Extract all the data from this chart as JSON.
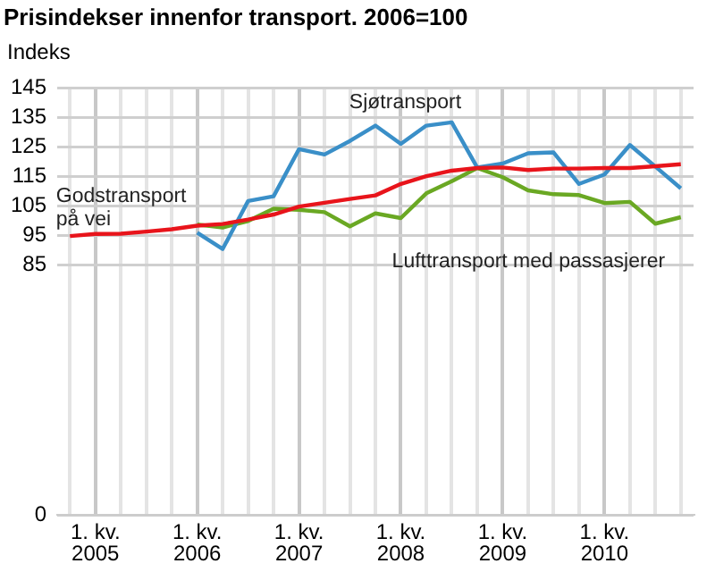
{
  "chart_data": {
    "type": "line",
    "title": "Prisindekser innenfor transport. 2006=100",
    "ylabel": "Indeks",
    "categories": [
      null,
      "1. kv.\n2005",
      null,
      null,
      null,
      "1. kv.\n2006",
      null,
      null,
      null,
      "1. kv.\n2007",
      null,
      null,
      null,
      "1. kv.\n2008",
      null,
      null,
      null,
      "1. kv.\n2009",
      null,
      null,
      null,
      "1. kv.\n2010",
      null,
      null,
      null
    ],
    "series": [
      {
        "name": "Godstransport\npå vei",
        "color": "#e8141b",
        "values": [
          94.7,
          95.4,
          95.5,
          96.2,
          97,
          98.2,
          98.8,
          100.3,
          102,
          104.7,
          106,
          107.3,
          108.5,
          112.4,
          115,
          116.9,
          117.8,
          118,
          117.1,
          117.6,
          117.6,
          117.8,
          117.8,
          118.4,
          119.1
        ]
      },
      {
        "name": "Sjøtransport",
        "color": "#3a8fc8",
        "values": [
          null,
          null,
          null,
          null,
          null,
          95.8,
          90.3,
          106.6,
          108.2,
          124.2,
          122.4,
          127,
          132.2,
          126,
          132.2,
          133.3,
          118,
          119.3,
          122.8,
          123.1,
          112.4,
          115.6,
          125.6,
          118.3,
          110.9
        ]
      },
      {
        "name": "Lufttransport med passasjerer",
        "color": "#6aa823",
        "values": [
          null,
          null,
          null,
          null,
          null,
          98.6,
          97.6,
          99.8,
          104,
          103.6,
          102.8,
          98,
          102.4,
          100.8,
          109.2,
          113.3,
          117.8,
          114.7,
          110.2,
          108.9,
          108.6,
          105.9,
          106.3,
          98.9,
          101.1
        ]
      }
    ],
    "ylim": [
      0,
      145
    ],
    "yticks": [
      0,
      85,
      95,
      105,
      115,
      125,
      135,
      145
    ],
    "grid": true,
    "legend": false,
    "marker": "none",
    "line_style": "solid"
  }
}
